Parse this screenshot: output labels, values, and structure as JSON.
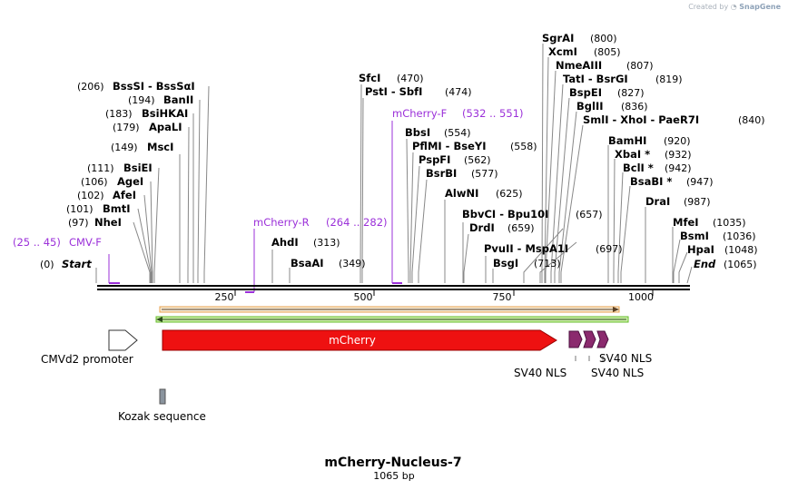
{
  "watermark": {
    "prefix": "Created by",
    "brand": "SnapGene"
  },
  "map": {
    "title": "mCherry-Nucleus-7",
    "length_label": "1065 bp",
    "length": 1065,
    "ticks": [
      250,
      500,
      750,
      1000
    ],
    "labels": {
      "start": {
        "pos": 0,
        "pos_text": "(0)",
        "name": "Start"
      },
      "end": {
        "pos": 1065,
        "pos_text": "(1065)",
        "name": "End"
      },
      "sites": [
        {
          "name": "NheI",
          "pos": 97,
          "pos_text": "(97)"
        },
        {
          "name": "BmtI",
          "pos": 101,
          "pos_text": "(101)"
        },
        {
          "name": "AfeI",
          "pos": 102,
          "pos_text": "(102)"
        },
        {
          "name": "AgeI",
          "pos": 106,
          "pos_text": "(106)"
        },
        {
          "name": "BsiEI",
          "pos": 111,
          "pos_text": "(111)"
        },
        {
          "name": "MscI",
          "pos": 149,
          "pos_text": "(149)"
        },
        {
          "name": "ApaLI",
          "pos": 179,
          "pos_text": "(179)"
        },
        {
          "name": "BsiHKAI",
          "pos": 183,
          "pos_text": "(183)"
        },
        {
          "name": "BanII",
          "pos": 194,
          "pos_text": "(194)"
        },
        {
          "name": "BssSI  -  BssSαI",
          "pos": 206,
          "pos_text": "(206)"
        },
        {
          "name": "AhdI",
          "pos": 313,
          "pos_text": "(313)"
        },
        {
          "name": "BsaAI",
          "pos": 349,
          "pos_text": "(349)"
        },
        {
          "name": "SfcI",
          "pos": 470,
          "pos_text": "(470)"
        },
        {
          "name": "PstI  -  SbfI",
          "pos": 474,
          "pos_text": "(474)"
        },
        {
          "name": "BbsI",
          "pos": 554,
          "pos_text": "(554)"
        },
        {
          "name": "PflMI  -  BseYI",
          "pos": 558,
          "pos_text": "(558)"
        },
        {
          "name": "PspFI",
          "pos": 562,
          "pos_text": "(562)"
        },
        {
          "name": "BsrBI",
          "pos": 577,
          "pos_text": "(577)"
        },
        {
          "name": "AlwNI",
          "pos": 625,
          "pos_text": "(625)"
        },
        {
          "name": "BbvCI  -  Bpu10I",
          "pos": 657,
          "pos_text": "(657)"
        },
        {
          "name": "DrdI",
          "pos": 659,
          "pos_text": "(659)"
        },
        {
          "name": "PvuII  -  MspA1I",
          "pos": 697,
          "pos_text": "(697)"
        },
        {
          "name": "BsgI",
          "pos": 713,
          "pos_text": "(713)"
        },
        {
          "name": "SgrAI",
          "pos": 800,
          "pos_text": "(800)"
        },
        {
          "name": "XcmI",
          "pos": 805,
          "pos_text": "(805)"
        },
        {
          "name": "NmeAIII",
          "pos": 807,
          "pos_text": "(807)"
        },
        {
          "name": "TatI  -  BsrGI",
          "pos": 819,
          "pos_text": "(819)"
        },
        {
          "name": "BspEI",
          "pos": 827,
          "pos_text": "(827)"
        },
        {
          "name": "BglII",
          "pos": 836,
          "pos_text": "(836)"
        },
        {
          "name": "SmlI  -  XhoI  -  PaeR7I",
          "pos": 840,
          "pos_text": "(840)"
        },
        {
          "name": "BamHI",
          "pos": 920,
          "pos_text": "(920)"
        },
        {
          "name": "XbaI *",
          "pos": 932,
          "pos_text": "(932)"
        },
        {
          "name": "BclI *",
          "pos": 942,
          "pos_text": "(942)"
        },
        {
          "name": "BsaBI *",
          "pos": 947,
          "pos_text": "(947)"
        },
        {
          "name": "DraI",
          "pos": 987,
          "pos_text": "(987)"
        },
        {
          "name": "MfeI",
          "pos": 1035,
          "pos_text": "(1035)"
        },
        {
          "name": "BsmI",
          "pos": 1036,
          "pos_text": "(1036)"
        },
        {
          "name": "HpaI",
          "pos": 1048,
          "pos_text": "(1048)"
        },
        {
          "name": "End",
          "pos": 1065,
          "pos_text": "(1065)"
        }
      ],
      "primers": [
        {
          "name": "CMV-F",
          "range_text": "(25 .. 45)",
          "start": 25,
          "end": 45
        },
        {
          "name": "mCherry-R",
          "range_text": "(264 .. 282)",
          "start": 264,
          "end": 282
        },
        {
          "name": "mCherry-F",
          "range_text": "(532 .. 551)",
          "start": 532,
          "end": 551
        }
      ]
    },
    "features": {
      "cmv": "CMVd2 promoter",
      "mcherry": "mCherry",
      "kozak": "Kozak sequence",
      "nls1": "SV40 NLS",
      "nls2": "SV40 NLS",
      "nls3": "SV40 NLS"
    },
    "colors": {
      "primer": "#9b30d9",
      "mcherry": "#ee1111",
      "nls": "#8b2a6e",
      "orf_orange": "#d9821f",
      "orf_green": "#3aa040",
      "kozak": "#8a949e"
    }
  }
}
